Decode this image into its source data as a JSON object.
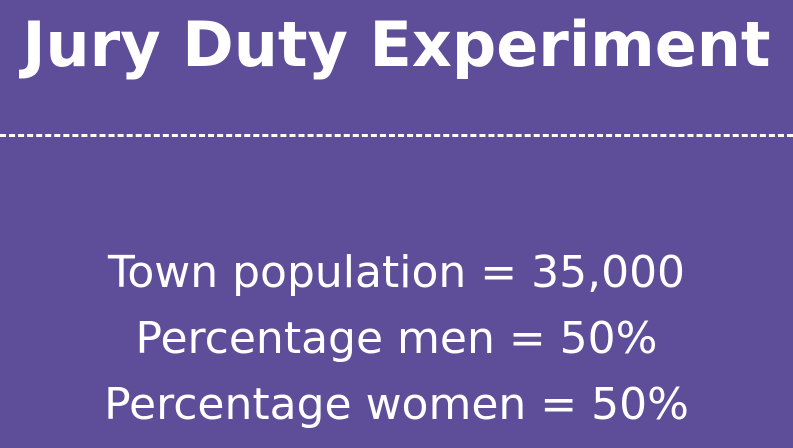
{
  "slide": {
    "title": "Jury Duty Experiment",
    "lines": [
      "Town population = 35,000",
      "Percentage men = 50%",
      "Percentage women = 50%"
    ]
  },
  "colors": {
    "background": "#5e4e9a",
    "text": "#ffffff"
  }
}
